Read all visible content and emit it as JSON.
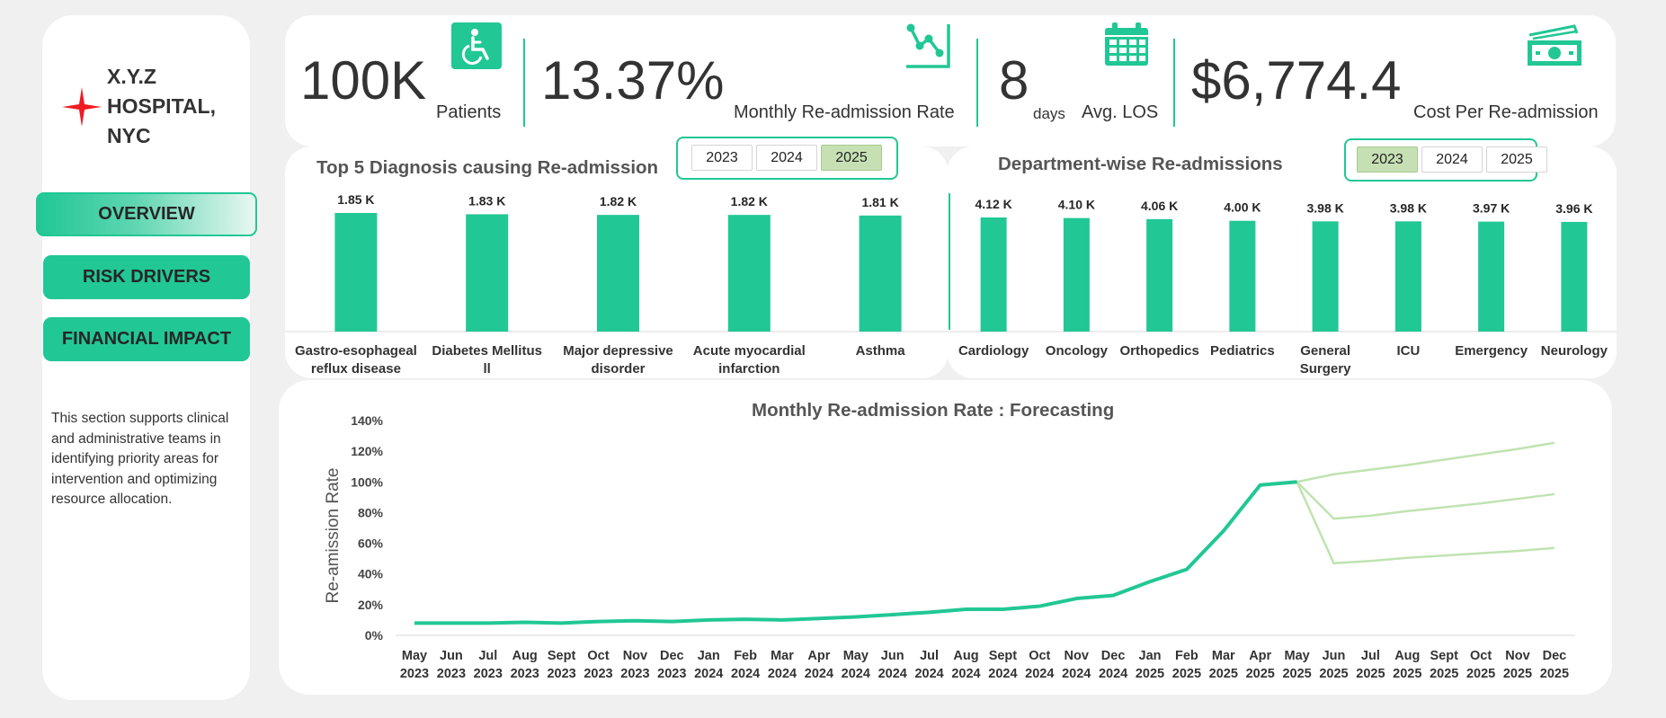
{
  "sidebar": {
    "hospital_name": "X.Y.Z HOSPITAL, NYC",
    "nav": [
      {
        "label": "OVERVIEW",
        "active": true
      },
      {
        "label": "RISK DRIVERS",
        "active": false
      },
      {
        "label": "FINANCIAL IMPACT",
        "active": false
      }
    ],
    "description": "This section supports clinical and administrative teams in identifying priority areas for intervention and optimizing resource allocation."
  },
  "kpis": {
    "patients": {
      "value": "100K",
      "label": "Patients",
      "icon": "wheelchair-icon"
    },
    "readmission_rate": {
      "value": "13.37%",
      "label": "Monthly Re-admission Rate",
      "icon": "trend-chart-icon"
    },
    "los": {
      "value": "8",
      "unit": "days",
      "label": "Avg. LOS",
      "icon": "calendar-icon"
    },
    "cost": {
      "value": "$6,774.4",
      "label": "Cost Per Re-admission",
      "icon": "money-icon"
    }
  },
  "colors": {
    "accent": "#21c795",
    "forecast": "#bfe3b0",
    "selected_slicer": "#c6e0b4"
  },
  "diagnosis_slicer": {
    "years": [
      "2023",
      "2024",
      "2025"
    ],
    "selected": "2025"
  },
  "department_slicer": {
    "years": [
      "2023",
      "2024",
      "2025"
    ],
    "selected": "2023"
  },
  "chart_data": [
    {
      "type": "bar",
      "title": "Top 5 Diagnosis causing Re-admission",
      "categories": [
        "Gastro-esophageal reflux disease",
        "Diabetes Mellitus ll",
        "Major depressive disorder",
        "Acute myocardial infarction",
        "Asthma"
      ],
      "values": [
        1.85,
        1.83,
        1.82,
        1.82,
        1.81
      ],
      "data_labels": [
        "1.85 K",
        "1.83 K",
        "1.82 K",
        "1.82 K",
        "1.81 K"
      ],
      "ylim": [
        0,
        1.85
      ]
    },
    {
      "type": "bar",
      "title": "Department-wise Re-admissions",
      "categories": [
        "Cardiology",
        "Oncology",
        "Orthopedics",
        "Pediatrics",
        "General Surgery",
        "ICU",
        "Emergency",
        "Neurology"
      ],
      "values": [
        4.12,
        4.1,
        4.06,
        4.0,
        3.98,
        3.98,
        3.97,
        3.96
      ],
      "data_labels": [
        "4.12 K",
        "4.10 K",
        "4.06 K",
        "4.00 K",
        "3.98 K",
        "3.98 K",
        "3.97 K",
        "3.96 K"
      ],
      "ylim": [
        0,
        4.12
      ]
    },
    {
      "type": "line",
      "title": "Monthly Re-admission Rate : Forecasting",
      "ylabel": "Re-amission Rate",
      "ylim": [
        0,
        140
      ],
      "yticks": [
        "0%",
        "20%",
        "40%",
        "60%",
        "80%",
        "100%",
        "120%",
        "140%"
      ],
      "x_months": [
        "May",
        "Jun",
        "Jul",
        "Aug",
        "Sept",
        "Oct",
        "Nov",
        "Dec",
        "Jan",
        "Feb",
        "Mar",
        "Apr",
        "May",
        "Jun",
        "Jul",
        "Aug",
        "Sept",
        "Oct",
        "Nov",
        "Dec",
        "Jan",
        "Feb",
        "Mar",
        "Apr",
        "May",
        "Jun",
        "Jul",
        "Aug",
        "Sept",
        "Oct",
        "Nov",
        "Dec"
      ],
      "x_years": [
        "2023",
        "2023",
        "2023",
        "2023",
        "2023",
        "2023",
        "2023",
        "2023",
        "2024",
        "2024",
        "2024",
        "2024",
        "2024",
        "2024",
        "2024",
        "2024",
        "2024",
        "2024",
        "2024",
        "2024",
        "2025",
        "2025",
        "2025",
        "2025",
        "2025",
        "2025",
        "2025",
        "2025",
        "2025",
        "2025",
        "2025",
        "2025"
      ],
      "actual": [
        8,
        8,
        8,
        8.5,
        8,
        9,
        9.5,
        9,
        10,
        10.5,
        10,
        11,
        12,
        13.5,
        15,
        17,
        17,
        19,
        24,
        26,
        35,
        43,
        68,
        98,
        100
      ],
      "forecast": [
        100,
        105,
        108,
        111,
        114.5,
        118,
        121.5,
        125.5
      ],
      "upper_bound": [
        100,
        76,
        78,
        81,
        83.5,
        86,
        89,
        92
      ],
      "lower_bound": [
        100,
        47,
        48.5,
        50.5,
        52,
        53.5,
        55,
        57
      ]
    }
  ]
}
